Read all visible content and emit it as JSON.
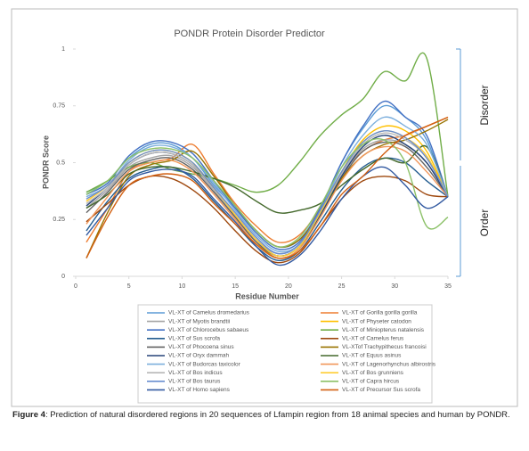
{
  "chart_data": {
    "type": "line",
    "title": "PONDR Protein Disorder Predictor",
    "x_label": "Residue Number",
    "y_label": "PONDR Score",
    "annotations": [
      "Disorder",
      "Order"
    ],
    "xlim": [
      0,
      35
    ],
    "xticks": [
      0,
      5,
      10,
      15,
      20,
      25,
      30,
      35
    ],
    "ylim": [
      0,
      1
    ],
    "yticks": [
      0,
      0.25,
      0.5,
      0.75,
      1
    ],
    "grid": false,
    "legend": "bottom",
    "x": [
      1,
      3,
      5,
      7,
      9,
      11,
      13,
      15,
      17,
      19,
      21,
      23,
      25,
      27,
      29,
      31,
      33,
      35
    ],
    "series": [
      {
        "name": "VL-XT of Camelus dromedarius",
        "color": "#5b9bd5",
        "values": [
          0.37,
          0.42,
          0.52,
          0.58,
          0.58,
          0.52,
          0.4,
          0.3,
          0.2,
          0.13,
          0.16,
          0.3,
          0.5,
          0.65,
          0.75,
          0.7,
          0.6,
          0.35
        ]
      },
      {
        "name": "VL-XT of Gorilla gorilla gorilla",
        "color": "#ed7d31",
        "values": [
          0.15,
          0.3,
          0.46,
          0.5,
          0.52,
          0.58,
          0.45,
          0.32,
          0.22,
          0.15,
          0.18,
          0.3,
          0.45,
          0.55,
          0.6,
          0.62,
          0.66,
          0.7
        ]
      },
      {
        "name": "VL-XT of Myotis brandtii",
        "color": "#a5a5a5",
        "values": [
          0.3,
          0.38,
          0.48,
          0.52,
          0.53,
          0.48,
          0.38,
          0.27,
          0.16,
          0.1,
          0.14,
          0.28,
          0.44,
          0.56,
          0.6,
          0.58,
          0.5,
          0.35
        ]
      },
      {
        "name": "VL-XT of Physeter catodon",
        "color": "#ffc000",
        "values": [
          0.33,
          0.4,
          0.5,
          0.55,
          0.55,
          0.5,
          0.38,
          0.26,
          0.15,
          0.08,
          0.12,
          0.27,
          0.46,
          0.6,
          0.66,
          0.64,
          0.55,
          0.35
        ]
      },
      {
        "name": "VL-XT of Chlorocebus sabaeus",
        "color": "#4472c4",
        "values": [
          0.36,
          0.41,
          0.53,
          0.59,
          0.59,
          0.54,
          0.42,
          0.3,
          0.19,
          0.12,
          0.15,
          0.3,
          0.5,
          0.66,
          0.77,
          0.7,
          0.62,
          0.35
        ]
      },
      {
        "name": "VL-XT of Miniopterus natalensis",
        "color": "#70ad47",
        "values": [
          0.37,
          0.42,
          0.48,
          0.5,
          0.47,
          0.45,
          0.43,
          0.4,
          0.37,
          0.4,
          0.5,
          0.62,
          0.71,
          0.78,
          0.9,
          0.86,
          0.96,
          0.35
        ]
      },
      {
        "name": "VL-XT of Sus scrofa",
        "color": "#255e91",
        "values": [
          0.2,
          0.33,
          0.43,
          0.47,
          0.48,
          0.43,
          0.33,
          0.23,
          0.13,
          0.07,
          0.11,
          0.24,
          0.38,
          0.48,
          0.52,
          0.5,
          0.42,
          0.35
        ]
      },
      {
        "name": "VL-XT of Camelus ferus",
        "color": "#9e480e",
        "values": [
          0.24,
          0.32,
          0.4,
          0.44,
          0.43,
          0.38,
          0.3,
          0.2,
          0.11,
          0.06,
          0.1,
          0.22,
          0.34,
          0.42,
          0.44,
          0.42,
          0.36,
          0.35
        ]
      },
      {
        "name": "VL-XT of Phocoena sinus",
        "color": "#636363",
        "values": [
          0.28,
          0.37,
          0.47,
          0.51,
          0.52,
          0.47,
          0.37,
          0.26,
          0.15,
          0.09,
          0.13,
          0.27,
          0.43,
          0.55,
          0.59,
          0.57,
          0.48,
          0.35
        ]
      },
      {
        "name": "VL-XTof Trachypithecus francoisi",
        "color": "#997300",
        "values": [
          0.08,
          0.28,
          0.44,
          0.49,
          0.51,
          0.55,
          0.44,
          0.31,
          0.2,
          0.13,
          0.16,
          0.28,
          0.43,
          0.53,
          0.58,
          0.6,
          0.64,
          0.69
        ]
      },
      {
        "name": "VL-XT of Oryx dammah",
        "color": "#264478",
        "values": [
          0.31,
          0.39,
          0.49,
          0.54,
          0.54,
          0.49,
          0.38,
          0.27,
          0.16,
          0.09,
          0.13,
          0.27,
          0.44,
          0.57,
          0.62,
          0.58,
          0.5,
          0.35
        ]
      },
      {
        "name": "VL-XT of Equus asinus",
        "color": "#43682b",
        "values": [
          0.3,
          0.36,
          0.45,
          0.48,
          0.48,
          0.46,
          0.43,
          0.39,
          0.33,
          0.28,
          0.29,
          0.32,
          0.4,
          0.47,
          0.52,
          0.5,
          0.57,
          0.35
        ]
      },
      {
        "name": "VL-XT of Budorcas taxicolor",
        "color": "#7cafdd",
        "values": [
          0.35,
          0.4,
          0.51,
          0.57,
          0.57,
          0.52,
          0.41,
          0.29,
          0.18,
          0.11,
          0.14,
          0.29,
          0.48,
          0.62,
          0.7,
          0.66,
          0.58,
          0.35
        ]
      },
      {
        "name": "VL-XT of Lagenorhynchus albirostris",
        "color": "#f1975a",
        "values": [
          0.23,
          0.35,
          0.46,
          0.5,
          0.51,
          0.46,
          0.36,
          0.25,
          0.14,
          0.08,
          0.12,
          0.26,
          0.42,
          0.53,
          0.57,
          0.55,
          0.46,
          0.35
        ]
      },
      {
        "name": "VL-XT of Bos indicus",
        "color": "#b7b7b7",
        "values": [
          0.32,
          0.39,
          0.49,
          0.54,
          0.54,
          0.49,
          0.38,
          0.27,
          0.16,
          0.09,
          0.13,
          0.28,
          0.45,
          0.58,
          0.63,
          0.6,
          0.52,
          0.35
        ]
      },
      {
        "name": "VL-XT of Bos grunniens",
        "color": "#ffcd33",
        "values": [
          0.33,
          0.4,
          0.5,
          0.55,
          0.55,
          0.5,
          0.39,
          0.27,
          0.16,
          0.09,
          0.13,
          0.28,
          0.46,
          0.59,
          0.64,
          0.61,
          0.53,
          0.35
        ]
      },
      {
        "name": "VL-XT of Bos taurus",
        "color": "#698ed0",
        "values": [
          0.34,
          0.4,
          0.5,
          0.55,
          0.55,
          0.5,
          0.39,
          0.28,
          0.17,
          0.1,
          0.14,
          0.29,
          0.46,
          0.59,
          0.64,
          0.61,
          0.52,
          0.35
        ]
      },
      {
        "name": "VL-XT of Capra hircus",
        "color": "#8cc168",
        "values": [
          0.36,
          0.42,
          0.52,
          0.56,
          0.56,
          0.52,
          0.42,
          0.31,
          0.2,
          0.13,
          0.17,
          0.31,
          0.48,
          0.58,
          0.6,
          0.5,
          0.22,
          0.26
        ]
      },
      {
        "name": "VL-XT of Homo sapiens",
        "color": "#335aa1",
        "values": [
          0.18,
          0.3,
          0.42,
          0.46,
          0.47,
          0.44,
          0.34,
          0.24,
          0.13,
          0.05,
          0.09,
          0.2,
          0.34,
          0.44,
          0.48,
          0.4,
          0.3,
          0.35
        ]
      },
      {
        "name": "VL-XT of Precursor Sus scrofa",
        "color": "#d26012",
        "values": [
          0.08,
          0.26,
          0.4,
          0.44,
          0.45,
          0.42,
          0.32,
          0.23,
          0.14,
          0.08,
          0.11,
          0.22,
          0.36,
          0.44,
          0.54,
          0.62,
          0.66,
          0.7
        ]
      }
    ]
  },
  "caption": {
    "label": "Figure 4",
    "text": ": Prediction of natural disordered regions in 20 sequences of Lfampin region from 18 animal species and human by PONDR."
  }
}
